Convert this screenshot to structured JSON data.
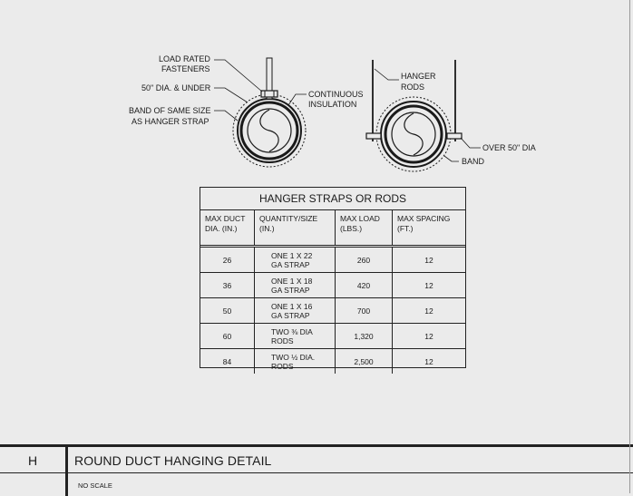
{
  "callouts": {
    "load_rated_1": "LOAD RATED",
    "load_rated_2": "FASTENERS",
    "dia_under": "50\" DIA. & UNDER",
    "band_same_1": "BAND OF SAME SIZE",
    "band_same_2": "AS HANGER STRAP",
    "continuous_1": "CONTINUOUS",
    "continuous_2": "INSULATION",
    "hanger_1": "HANGER",
    "hanger_2": "RODS",
    "over_50": "OVER 50\" DIA",
    "band": "BAND"
  },
  "table": {
    "title": "HANGER STRAPS OR RODS",
    "headers": [
      [
        "MAX DUCT",
        "DIA. (IN.)"
      ],
      [
        "QUANTITY/SIZE",
        "(IN.)"
      ],
      [
        "MAX LOAD",
        "(LBS.)"
      ],
      [
        "MAX SPACING",
        "(FT.)"
      ]
    ],
    "rows": [
      {
        "dia": "26",
        "size1": "ONE 1 X 22",
        "size2": "GA STRAP",
        "load": "260",
        "spacing": "12"
      },
      {
        "dia": "36",
        "size1": "ONE 1 X 18",
        "size2": "GA STRAP",
        "load": "420",
        "spacing": "12"
      },
      {
        "dia": "50",
        "size1": "ONE 1 X 16",
        "size2": "GA STRAP",
        "load": "700",
        "spacing": "12"
      },
      {
        "dia": "60",
        "size1": "TWO ⅜ DIA",
        "size2": "RODS",
        "load": "1,320",
        "spacing": "12"
      },
      {
        "dia": "84",
        "size1": "TWO ½ DIA.",
        "size2": "RODS",
        "load": "2,500",
        "spacing": "12"
      }
    ]
  },
  "title_block": {
    "letter": "H",
    "title": "ROUND DUCT HANGING  DETAIL",
    "scale": "NO SCALE"
  }
}
